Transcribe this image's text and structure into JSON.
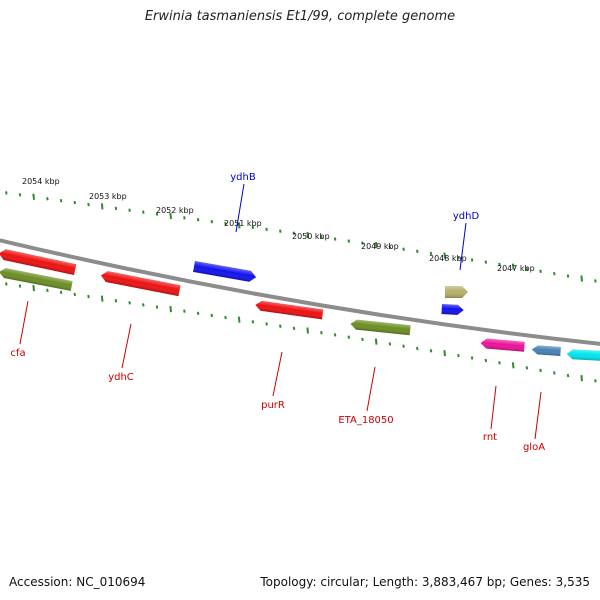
{
  "title": "Erwinia tasmaniensis Et1/99, complete genome",
  "footer": {
    "accession": "Accession: NC_010694",
    "summary": "Topology: circular; Length: 3,883,467 bp; Genes: 3,535"
  },
  "colors": {
    "backbone": "#8c8c8c",
    "scale_ticks": "#2e8b2e",
    "label_red": "#cc0000",
    "label_blue": "#0000cc"
  },
  "scale_labels": [
    "2054 kbp",
    "2053 kbp",
    "2052 kbp",
    "2051 kbp",
    "2050 kbp",
    "2049 kbp",
    "2048 kbp",
    "2047 kbp"
  ],
  "genes": [
    {
      "name": "cfa",
      "color": "#ee1111",
      "strand": "reverse"
    },
    {
      "name": "",
      "color": "#6b8e23",
      "strand": "reverse"
    },
    {
      "name": "ydhC",
      "color": "#ee1111",
      "strand": "reverse"
    },
    {
      "name": "ydhB",
      "color": "#1111ee",
      "strand": "forward"
    },
    {
      "name": "purR",
      "color": "#ee1111",
      "strand": "reverse"
    },
    {
      "name": "ETA_18050",
      "color": "#6b8e23",
      "strand": "reverse"
    },
    {
      "name": "ydhD",
      "color": "#b5b06a",
      "strand": "forward"
    },
    {
      "name": "",
      "color": "#1111ee",
      "strand": "forward"
    },
    {
      "name": "rnt",
      "color": "#ee1199",
      "strand": "reverse"
    },
    {
      "name": "gloA",
      "color": "#4682b4",
      "strand": "reverse"
    },
    {
      "name": "",
      "color": "#00e5ee",
      "strand": "reverse"
    }
  ]
}
